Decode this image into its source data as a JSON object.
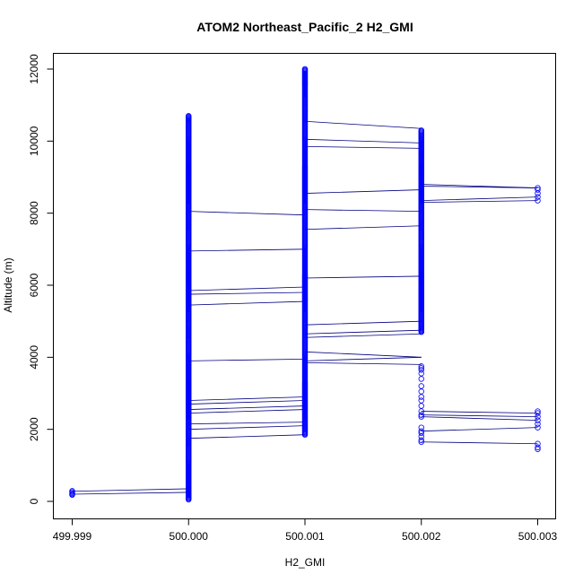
{
  "chart_data": {
    "type": "scatter",
    "title": "ATOM2 Northeast_Pacific_2 H2_GMI",
    "xlabel": "H2_GMI",
    "ylabel": "Altitude (m)",
    "xlim": [
      499.999,
      500.003
    ],
    "ylim": [
      0,
      12000
    ],
    "x_ticks": [
      499.999,
      500.0,
      500.001,
      500.002,
      500.003
    ],
    "x_tick_labels": [
      "499.999",
      "500.000",
      "500.001",
      "500.002",
      "500.003"
    ],
    "y_ticks": [
      0,
      2000,
      4000,
      6000,
      8000,
      10000,
      12000
    ],
    "y_tick_labels": [
      "0",
      "2000",
      "4000",
      "6000",
      "8000",
      "10000",
      "12000"
    ],
    "marker": "open-circle",
    "colors": {
      "points": "#0000ff",
      "lines": "#000080",
      "axes": "#000000"
    },
    "point_columns": [
      {
        "x": 499.999,
        "altitudes": [
          180,
          200,
          230,
          260,
          290
        ]
      },
      {
        "x": 500.0,
        "range": [
          50,
          10700
        ]
      },
      {
        "x": 500.001,
        "range": [
          1850,
          12000
        ]
      },
      {
        "x": 500.002,
        "range": [
          4700,
          10300
        ],
        "extra_altitudes": [
          1650,
          1700,
          1800,
          1900,
          1950,
          2050,
          2350,
          2400,
          2500,
          2650,
          2800,
          2900,
          3050,
          3200,
          3400,
          3550,
          3650,
          3700,
          3750
        ]
      },
      {
        "x": 500.003,
        "altitudes": [
          1450,
          1500,
          1600,
          2050,
          2150,
          2250,
          2350,
          2450,
          2500,
          8350,
          8450,
          8550,
          8650,
          8700
        ]
      }
    ],
    "segments": [
      [
        499.999,
        200,
        500.0,
        250
      ],
      [
        499.999,
        280,
        500.0,
        350
      ],
      [
        500.0,
        8050,
        500.001,
        7950
      ],
      [
        500.0,
        6950,
        500.001,
        7000
      ],
      [
        500.0,
        5850,
        500.001,
        5950
      ],
      [
        500.0,
        5750,
        500.001,
        5800
      ],
      [
        500.0,
        5450,
        500.001,
        5550
      ],
      [
        500.0,
        3900,
        500.001,
        3950
      ],
      [
        500.0,
        2800,
        500.001,
        2900
      ],
      [
        500.0,
        2700,
        500.001,
        2800
      ],
      [
        500.0,
        2550,
        500.001,
        2650
      ],
      [
        500.0,
        2450,
        500.001,
        2550
      ],
      [
        500.0,
        2150,
        500.001,
        2200
      ],
      [
        500.0,
        2000,
        500.001,
        2100
      ],
      [
        500.0,
        1750,
        500.001,
        1850
      ],
      [
        500.001,
        10550,
        500.002,
        10350
      ],
      [
        500.001,
        10050,
        500.002,
        9950
      ],
      [
        500.001,
        9850,
        500.002,
        9800
      ],
      [
        500.001,
        8550,
        500.002,
        8650
      ],
      [
        500.001,
        8100,
        500.002,
        8050
      ],
      [
        500.001,
        7550,
        500.002,
        7650
      ],
      [
        500.001,
        6200,
        500.002,
        6250
      ],
      [
        500.001,
        4900,
        500.002,
        5000
      ],
      [
        500.001,
        4650,
        500.002,
        4750
      ],
      [
        500.001,
        4550,
        500.002,
        4650
      ],
      [
        500.001,
        4150,
        500.002,
        4000
      ],
      [
        500.001,
        3900,
        500.002,
        4000
      ],
      [
        500.001,
        3850,
        500.002,
        3800
      ],
      [
        500.002,
        8800,
        500.003,
        8700
      ],
      [
        500.002,
        8750,
        500.003,
        8700
      ],
      [
        500.002,
        8350,
        500.003,
        8450
      ],
      [
        500.002,
        8300,
        500.003,
        8350
      ],
      [
        500.002,
        2500,
        500.003,
        2450
      ],
      [
        500.002,
        2400,
        500.003,
        2350
      ],
      [
        500.002,
        2350,
        500.003,
        2250
      ],
      [
        500.002,
        1950,
        500.003,
        2050
      ],
      [
        500.002,
        1650,
        500.003,
        1600
      ]
    ]
  }
}
